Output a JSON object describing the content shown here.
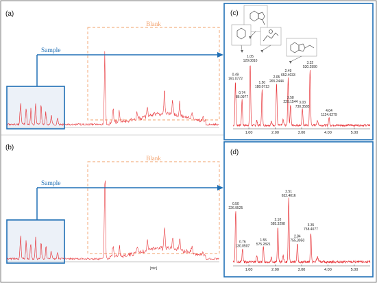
{
  "figure": {
    "panel_labels": [
      "(a)",
      "(b)",
      "(c)",
      "(d)"
    ],
    "sample_label": "Sample",
    "blank_label": "Blank",
    "min_label": "[min]",
    "colors": {
      "trace": "#e8383d",
      "blue": "#1f6fb5",
      "blank_box": "#f2a06a",
      "inset_bg": "#dce6f3",
      "zoom_bg": "#ffffff"
    }
  },
  "chart_data": [
    {
      "id": "c",
      "type": "line",
      "xticks": [
        "1.00",
        "2.00",
        "3.00",
        "4.00",
        "5.00"
      ],
      "xlim": [
        0.4,
        5.6
      ],
      "ylim": [
        0,
        100
      ],
      "peaks": [
        {
          "rt": 0.49,
          "label": [
            "0.49",
            "191.0772"
          ],
          "h": 55
        },
        {
          "rt": 0.74,
          "label": [
            "0.74",
            "86.0977"
          ],
          "h": 32
        },
        {
          "rt": 1.05,
          "label": [
            "1.05",
            "120.0810"
          ],
          "h": 78
        },
        {
          "rt": 1.5,
          "label": [
            "1.50",
            "188.0713"
          ],
          "h": 45
        },
        {
          "rt": 2.05,
          "label": [
            "2.05",
            "265.2444"
          ],
          "h": 52
        },
        {
          "rt": 2.49,
          "label": [
            "2.49",
            "652.4033"
          ],
          "h": 60
        },
        {
          "rt": 2.58,
          "label": [
            "2.58",
            "229.1544"
          ],
          "h": 26
        },
        {
          "rt": 3.03,
          "label": [
            "3.03",
            "730.3585"
          ],
          "h": 20
        },
        {
          "rt": 3.32,
          "label": [
            "3.32",
            "530.2990"
          ],
          "h": 70
        },
        {
          "rt": 4.04,
          "label": [
            "4.04",
            "1124.6279"
          ],
          "h": 10
        }
      ]
    },
    {
      "id": "d",
      "type": "line",
      "xticks": [
        "1.00",
        "2.00",
        "3.00",
        "4.00",
        "5.00"
      ],
      "xlim": [
        0.4,
        5.6
      ],
      "ylim": [
        0,
        100
      ],
      "peaks": [
        {
          "rt": 0.5,
          "label": [
            "0.50",
            "226.9525"
          ],
          "h": 55
        },
        {
          "rt": 0.76,
          "label": [
            "0.76",
            "130.0507"
          ],
          "h": 14
        },
        {
          "rt": 1.55,
          "label": [
            "1.55",
            "575.2821"
          ],
          "h": 16
        },
        {
          "rt": 2.1,
          "label": [
            "2.10",
            "585.3298"
          ],
          "h": 38
        },
        {
          "rt": 2.51,
          "label": [
            "2.51",
            "652.4016"
          ],
          "h": 68
        },
        {
          "rt": 2.84,
          "label": [
            "2.84",
            "755.3950"
          ],
          "h": 20
        },
        {
          "rt": 3.35,
          "label": [
            "3.35",
            "758.4077"
          ],
          "h": 32
        }
      ]
    }
  ]
}
